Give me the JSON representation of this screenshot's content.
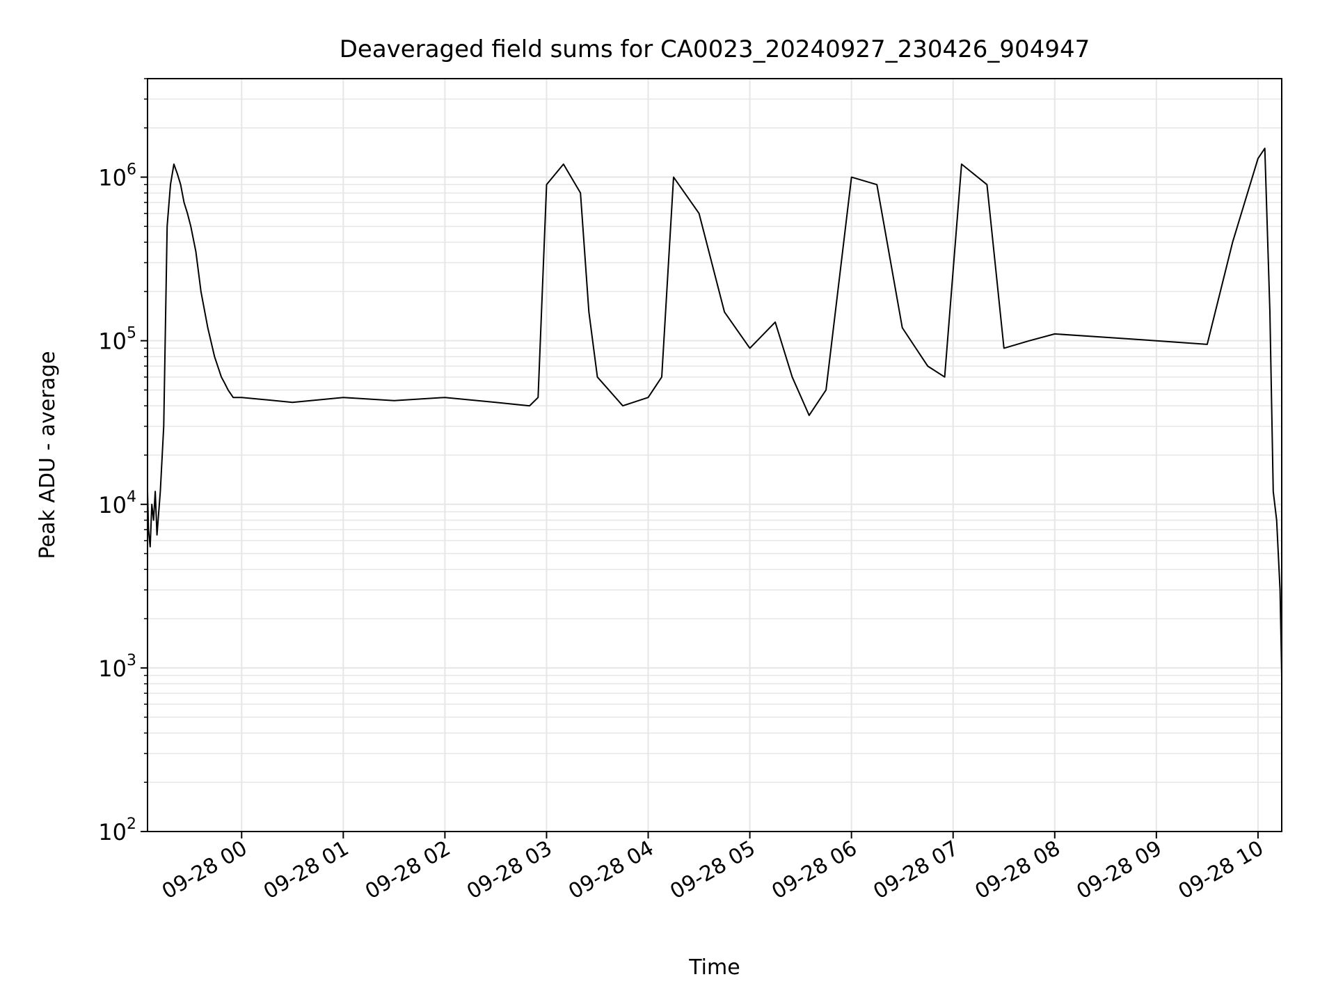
{
  "chart_data": {
    "type": "line",
    "title": "Deaveraged field sums for CA0023_20240927_230426_904947",
    "xlabel": "Time",
    "ylabel": "Peak ADU - average",
    "yscale": "log",
    "ylim": [
      100,
      4000000
    ],
    "xlim": [
      "2024-09-27 23:04:26",
      "2024-09-28 10:14:00"
    ],
    "grid": true,
    "legend": "none",
    "line_color": "#000000",
    "grid_color": "#e6e6e6",
    "x_ticks": [
      {
        "value": "2024-09-28 00:00",
        "label": "09-28 00"
      },
      {
        "value": "2024-09-28 01:00",
        "label": "09-28 01"
      },
      {
        "value": "2024-09-28 02:00",
        "label": "09-28 02"
      },
      {
        "value": "2024-09-28 03:00",
        "label": "09-28 03"
      },
      {
        "value": "2024-09-28 04:00",
        "label": "09-28 04"
      },
      {
        "value": "2024-09-28 05:00",
        "label": "09-28 05"
      },
      {
        "value": "2024-09-28 06:00",
        "label": "09-28 06"
      },
      {
        "value": "2024-09-28 07:00",
        "label": "09-28 07"
      },
      {
        "value": "2024-09-28 08:00",
        "label": "09-28 08"
      },
      {
        "value": "2024-09-28 09:00",
        "label": "09-28 09"
      },
      {
        "value": "2024-09-28 10:00",
        "label": "09-28 10"
      }
    ],
    "y_ticks": [
      {
        "value": 100,
        "base": "10",
        "exp": "2"
      },
      {
        "value": 1000,
        "base": "10",
        "exp": "3"
      },
      {
        "value": 10000,
        "base": "10",
        "exp": "4"
      },
      {
        "value": 100000,
        "base": "10",
        "exp": "5"
      },
      {
        "value": 1000000,
        "base": "10",
        "exp": "6"
      }
    ],
    "series": [
      {
        "x": [
          "2024-09-27 23:04:26",
          "2024-09-27 23:05",
          "2024-09-27 23:06",
          "2024-09-27 23:07",
          "2024-09-27 23:08",
          "2024-09-27 23:09",
          "2024-09-27 23:10",
          "2024-09-27 23:12",
          "2024-09-27 23:14",
          "2024-09-27 23:16",
          "2024-09-27 23:18",
          "2024-09-27 23:20",
          "2024-09-27 23:22",
          "2024-09-27 23:24",
          "2024-09-27 23:26",
          "2024-09-27 23:28",
          "2024-09-27 23:30",
          "2024-09-27 23:33",
          "2024-09-27 23:36",
          "2024-09-27 23:40",
          "2024-09-27 23:44",
          "2024-09-27 23:48",
          "2024-09-27 23:50",
          "2024-09-27 23:52",
          "2024-09-27 23:55",
          "2024-09-28 00:00",
          "2024-09-28 00:30",
          "2024-09-28 01:00",
          "2024-09-28 01:30",
          "2024-09-28 02:00",
          "2024-09-28 02:30",
          "2024-09-28 02:50",
          "2024-09-28 02:55",
          "2024-09-28 03:00",
          "2024-09-28 03:10",
          "2024-09-28 03:20",
          "2024-09-28 03:25",
          "2024-09-28 03:30",
          "2024-09-28 03:45",
          "2024-09-28 04:00",
          "2024-09-28 04:08",
          "2024-09-28 04:15",
          "2024-09-28 04:30",
          "2024-09-28 04:45",
          "2024-09-28 05:00",
          "2024-09-28 05:15",
          "2024-09-28 05:25",
          "2024-09-28 05:35",
          "2024-09-28 05:45",
          "2024-09-28 06:00",
          "2024-09-28 06:15",
          "2024-09-28 06:30",
          "2024-09-28 06:45",
          "2024-09-28 06:55",
          "2024-09-28 07:05",
          "2024-09-28 07:20",
          "2024-09-28 07:30",
          "2024-09-28 07:45",
          "2024-09-28 08:00",
          "2024-09-28 08:30",
          "2024-09-28 09:00",
          "2024-09-28 09:30",
          "2024-09-28 09:45",
          "2024-09-28 10:00",
          "2024-09-28 10:04",
          "2024-09-28 10:07",
          "2024-09-28 10:09",
          "2024-09-28 10:11",
          "2024-09-28 10:13",
          "2024-09-28 10:14"
        ],
        "y": [
          12000,
          7000,
          5500,
          10000,
          8000,
          12000,
          6500,
          12000,
          30000,
          500000,
          900000,
          1200000,
          1050000,
          900000,
          700000,
          600000,
          500000,
          350000,
          200000,
          120000,
          80000,
          60000,
          55000,
          50000,
          45000,
          45000,
          42000,
          45000,
          43000,
          45000,
          42000,
          40000,
          45000,
          900000,
          1200000,
          800000,
          150000,
          60000,
          40000,
          45000,
          60000,
          1000000,
          600000,
          150000,
          90000,
          130000,
          60000,
          35000,
          50000,
          1000000,
          900000,
          120000,
          70000,
          60000,
          1200000,
          900000,
          90000,
          100000,
          110000,
          105000,
          100000,
          95000,
          400000,
          1300000,
          1500000,
          150000,
          12000,
          8000,
          3000,
          900
        ]
      }
    ]
  }
}
